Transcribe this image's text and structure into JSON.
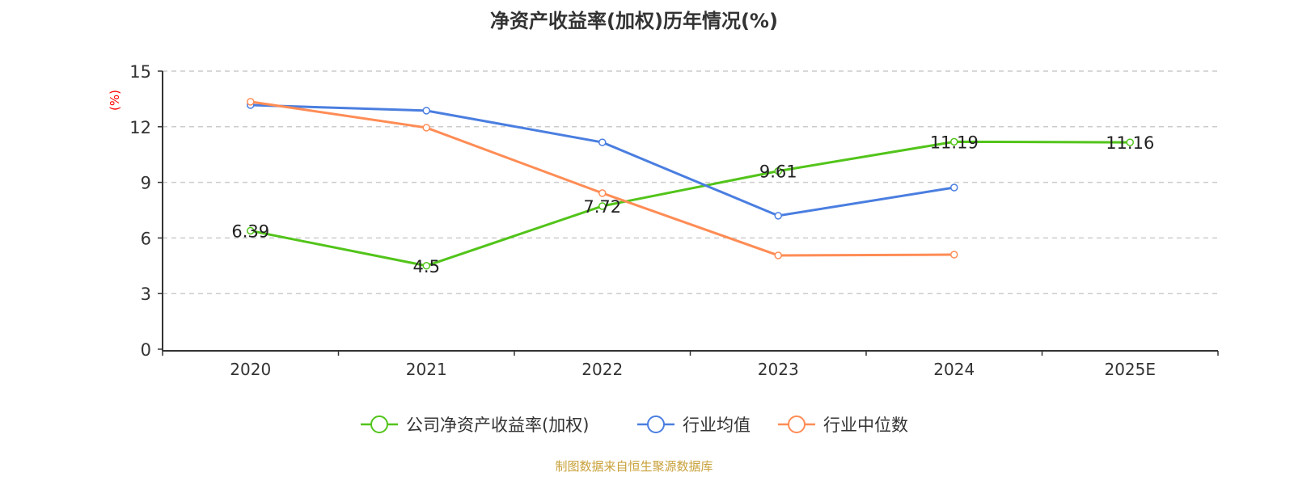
{
  "chart_data": {
    "type": "line",
    "title": "净资产收益率(加权)历年情况(%)",
    "ylabel": "(%)",
    "xlabel": "",
    "categories": [
      "2020",
      "2021",
      "2022",
      "2023",
      "2024",
      "2025E"
    ],
    "ylim": [
      0,
      15
    ],
    "yticks": [
      0,
      3,
      6,
      9,
      12,
      15
    ],
    "grid": true,
    "legend_position": "bottom",
    "series": [
      {
        "name": "公司净资产收益率(加权)",
        "color": "#52c41a",
        "values": [
          6.39,
          4.5,
          7.72,
          9.61,
          11.19,
          11.16
        ],
        "labels": [
          "6.39",
          "4.5",
          "7.72",
          "9.61",
          "11.19",
          "11.16"
        ]
      },
      {
        "name": "行业均值",
        "color": "#4a7ee0",
        "values": [
          13.17,
          12.87,
          11.16,
          7.2,
          8.72,
          null
        ]
      },
      {
        "name": "行业中位数",
        "color": "#ff8c55",
        "values": [
          13.35,
          11.95,
          8.42,
          5.06,
          5.1,
          null
        ]
      }
    ]
  },
  "footer": "制图数据来自恒生聚源数据库"
}
